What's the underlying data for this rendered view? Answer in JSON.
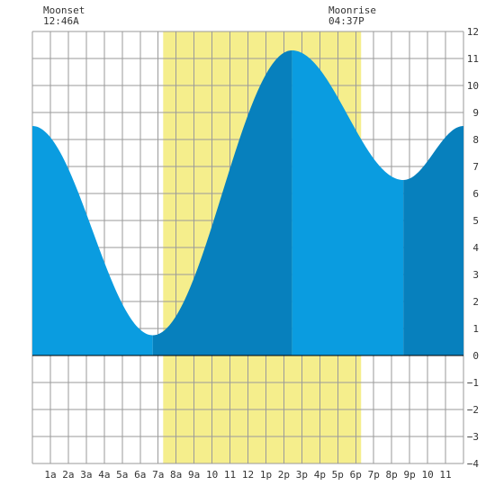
{
  "chart_data": {
    "type": "area",
    "title": "",
    "xlabel": "",
    "ylabel": "",
    "x_tick_labels": [
      "1a",
      "2a",
      "3a",
      "4a",
      "5a",
      "6a",
      "7a",
      "8a",
      "9a",
      "10",
      "11",
      "12",
      "1p",
      "2p",
      "3p",
      "4p",
      "5p",
      "6p",
      "7p",
      "8p",
      "9p",
      "10",
      "11"
    ],
    "xlim": [
      0,
      24
    ],
    "ylim": [
      -4,
      12
    ],
    "y_ticks": [
      -4,
      -3,
      -2,
      -1,
      0,
      1,
      2,
      3,
      4,
      5,
      6,
      7,
      8,
      9,
      10,
      11,
      12
    ],
    "y_axis_position": "right",
    "grid": true,
    "daylight": {
      "start_hour": 7.28,
      "end_hour": 18.3
    },
    "moon_events": [
      {
        "label": "Moonset",
        "time": "12:46A",
        "hour": 0.77
      },
      {
        "label": "Moonrise",
        "time": "04:37P",
        "hour": 16.62
      }
    ],
    "tide_extremes": [
      {
        "hour": 0.0,
        "height": 8.5
      },
      {
        "hour": 6.7,
        "height": 0.75
      },
      {
        "hour": 14.45,
        "height": 11.3
      },
      {
        "hour": 20.65,
        "height": 6.5
      },
      {
        "hour": 24.0,
        "height": 8.5
      }
    ],
    "shade_bands": [
      {
        "start": 0.0,
        "end": 6.7,
        "tone": "light"
      },
      {
        "start": 6.7,
        "end": 14.45,
        "tone": "dark"
      },
      {
        "start": 14.45,
        "end": 20.65,
        "tone": "light"
      },
      {
        "start": 20.65,
        "end": 24.0,
        "tone": "dark"
      }
    ],
    "colors": {
      "tide_light": "#0a9ce0",
      "tide_dark": "#0780bd",
      "daylight": "#f5ee8c",
      "grid": "#9a9a9a",
      "zero_line": "#000000",
      "text": "#333333"
    }
  }
}
